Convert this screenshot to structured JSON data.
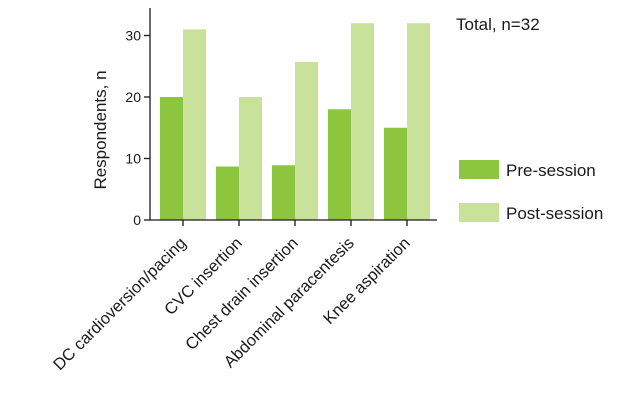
{
  "chart_data": {
    "type": "bar",
    "annotation": "Total, n=32",
    "ylabel": "Respondents, n",
    "xlabel": "",
    "ylim": [
      0,
      34
    ],
    "yticks": [
      0,
      10,
      20,
      30
    ],
    "grid": false,
    "legend_position": "right",
    "categories": [
      "DC cardioversion/pacing",
      "CVC insertion",
      "Chest drain insertion",
      "Abdominal paracentesis",
      "Knee aspiration"
    ],
    "series": [
      {
        "name": "Pre-session",
        "color": "#8cc63f",
        "values": [
          20,
          8.7,
          8.9,
          18,
          15
        ]
      },
      {
        "name": "Post-session",
        "color": "#c8e29a",
        "values": [
          31,
          20,
          25.7,
          32,
          32
        ]
      }
    ]
  }
}
